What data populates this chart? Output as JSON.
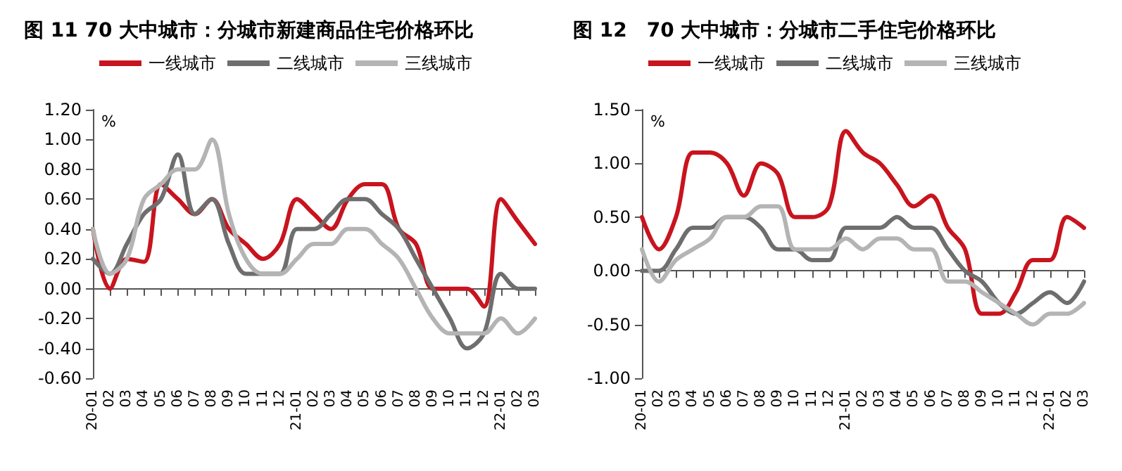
{
  "chart_data": [
    {
      "type": "line",
      "title": "图 11 70 大中城市：分城市新建商品住宅价格环比",
      "ylabel": "%",
      "categories": [
        "20-01",
        "02",
        "03",
        "04",
        "05",
        "06",
        "07",
        "08",
        "09",
        "10",
        "11",
        "12",
        "21-01",
        "02",
        "03",
        "04",
        "05",
        "06",
        "07",
        "08",
        "09",
        "10",
        "11",
        "12",
        "22-01",
        "02",
        "03"
      ],
      "series": [
        {
          "name": "一线城市",
          "color": "#c8141e",
          "values": [
            0.4,
            0.0,
            0.2,
            0.18,
            0.7,
            0.6,
            0.5,
            0.6,
            0.4,
            0.3,
            0.2,
            0.3,
            0.6,
            0.5,
            0.4,
            0.6,
            0.7,
            0.7,
            0.4,
            0.3,
            0.0,
            0.0,
            0.0,
            -0.12,
            0.6,
            0.45,
            0.3
          ]
        },
        {
          "name": "二线城市",
          "color": "#6e6e6e",
          "values": [
            0.2,
            0.1,
            0.3,
            0.5,
            0.6,
            0.9,
            0.5,
            0.6,
            0.3,
            0.1,
            0.1,
            0.1,
            0.4,
            0.4,
            0.5,
            0.6,
            0.6,
            0.5,
            0.4,
            0.2,
            0.0,
            -0.2,
            -0.4,
            -0.3,
            0.1,
            0.0,
            0.0
          ]
        },
        {
          "name": "三线城市",
          "color": "#b4b4b4",
          "values": [
            0.4,
            0.1,
            0.2,
            0.6,
            0.7,
            0.8,
            0.8,
            1.0,
            0.5,
            0.2,
            0.1,
            0.1,
            0.2,
            0.3,
            0.3,
            0.4,
            0.4,
            0.3,
            0.2,
            0.0,
            -0.2,
            -0.3,
            -0.3,
            -0.3,
            -0.2,
            -0.3,
            -0.2
          ]
        }
      ],
      "ylim": [
        -0.6,
        1.2
      ],
      "yticks": [
        {
          "value": -0.6,
          "label": "-0.60"
        },
        {
          "value": -0.4,
          "label": "-0.40"
        },
        {
          "value": -0.2,
          "label": "-0.20"
        },
        {
          "value": 0,
          "label": "0.00"
        },
        {
          "value": 0.2,
          "label": "0.20"
        },
        {
          "value": 0.4,
          "label": "0.40"
        },
        {
          "value": 0.6,
          "label": "0.60"
        },
        {
          "value": 0.8,
          "label": "0.80"
        },
        {
          "value": 1.0,
          "label": "1.00"
        },
        {
          "value": 1.2,
          "label": "1.20"
        }
      ],
      "legend": "top",
      "marker": "none",
      "line_style": "solid"
    },
    {
      "type": "line",
      "title": "图 12　70 大中城市：分城市二手住宅价格环比",
      "ylabel": "%",
      "categories": [
        "20-01",
        "02",
        "03",
        "04",
        "05",
        "06",
        "07",
        "08",
        "09",
        "10",
        "11",
        "12",
        "21-01",
        "02",
        "03",
        "04",
        "05",
        "06",
        "07",
        "08",
        "09",
        "10",
        "11",
        "12",
        "22-01",
        "02",
        "03"
      ],
      "series": [
        {
          "name": "一线城市",
          "color": "#c8141e",
          "values": [
            0.5,
            0.2,
            0.5,
            1.1,
            1.1,
            1.0,
            0.7,
            1.0,
            0.9,
            0.5,
            0.5,
            0.6,
            1.3,
            1.1,
            1.0,
            0.8,
            0.6,
            0.7,
            0.4,
            0.2,
            -0.4,
            -0.4,
            -0.2,
            0.1,
            0.1,
            0.5,
            0.4
          ]
        },
        {
          "name": "二线城市",
          "color": "#6e6e6e",
          "values": [
            0.0,
            0.0,
            0.2,
            0.4,
            0.4,
            0.5,
            0.5,
            0.4,
            0.2,
            0.2,
            0.1,
            0.1,
            0.4,
            0.4,
            0.4,
            0.5,
            0.4,
            0.4,
            0.2,
            0.0,
            -0.1,
            -0.3,
            -0.4,
            -0.3,
            -0.2,
            -0.3,
            -0.1
          ]
        },
        {
          "name": "三线城市",
          "color": "#b4b4b4",
          "values": [
            0.2,
            -0.1,
            0.1,
            0.2,
            0.3,
            0.5,
            0.5,
            0.6,
            0.6,
            0.2,
            0.2,
            0.2,
            0.3,
            0.2,
            0.3,
            0.3,
            0.2,
            0.2,
            -0.1,
            -0.1,
            -0.2,
            -0.3,
            -0.4,
            -0.5,
            -0.4,
            -0.4,
            -0.3
          ]
        }
      ],
      "ylim": [
        -1.0,
        1.5
      ],
      "yticks": [
        {
          "value": -1.0,
          "label": "-1.00"
        },
        {
          "value": -0.5,
          "label": "-0.50"
        },
        {
          "value": 0,
          "label": "0.00"
        },
        {
          "value": 0.5,
          "label": "0.50"
        },
        {
          "value": 1.0,
          "label": "1.00"
        },
        {
          "value": 1.5,
          "label": "1.50"
        }
      ],
      "legend": "top",
      "marker": "none",
      "line_style": "solid"
    }
  ]
}
